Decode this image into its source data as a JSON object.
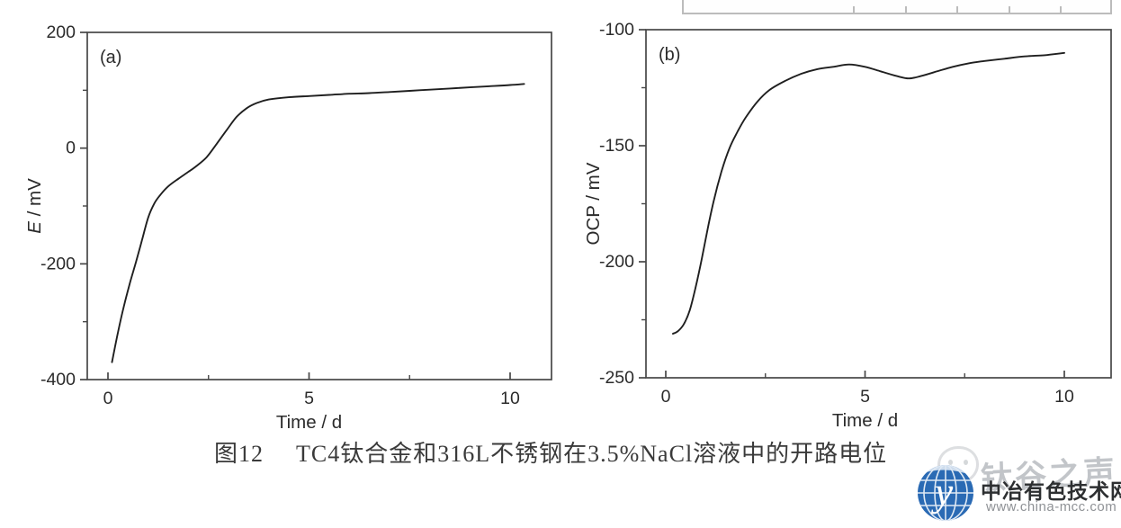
{
  "caption": {
    "figure_label": "图12",
    "text": "TC4钛合金和316L不锈钢在3.5%NaCl溶液中的开路电位"
  },
  "watermark": {
    "text": "钛谷之声"
  },
  "logo": {
    "site_name": "中冶有色技术网",
    "site_url": "www.china-mcc.com",
    "globe_letter": "y",
    "globe_color": "#2a6ab4"
  },
  "colors": {
    "axis": "#474747",
    "curve": "#1f1f1f",
    "tick_label": "#2b2b2b",
    "remnant_border": "#bcbcbc",
    "background": "#ffffff"
  },
  "chart_data": [
    {
      "type": "line",
      "panel_label": "(a)",
      "xlabel": "Time / d",
      "ylabel": "E / mV",
      "ylabel_parts": [
        {
          "text": "E",
          "italic": true
        },
        {
          "text": " / mV",
          "italic": false
        }
      ],
      "xlim": [
        0,
        10
      ],
      "ylim": [
        -400,
        200
      ],
      "xticks": [
        0,
        5,
        10
      ],
      "xticks_minor": [
        2.5,
        7.5
      ],
      "yticks": [
        200,
        0,
        -200,
        -400
      ],
      "yticks_minor": [
        100,
        -100,
        -300
      ],
      "grid": false,
      "legend": "none",
      "series": [
        {
          "name": "open-circuit potential",
          "points": [
            [
              0.1,
              -370
            ],
            [
              0.25,
              -318
            ],
            [
              0.4,
              -272
            ],
            [
              0.55,
              -232
            ],
            [
              0.7,
              -196
            ],
            [
              0.85,
              -158
            ],
            [
              1.0,
              -120
            ],
            [
              1.15,
              -96
            ],
            [
              1.3,
              -81
            ],
            [
              1.5,
              -66
            ],
            [
              1.75,
              -53
            ],
            [
              2.0,
              -41
            ],
            [
              2.2,
              -31
            ],
            [
              2.45,
              -16
            ],
            [
              2.7,
              7
            ],
            [
              2.95,
              31
            ],
            [
              3.2,
              54
            ],
            [
              3.45,
              69
            ],
            [
              3.7,
              78
            ],
            [
              4.0,
              84
            ],
            [
              4.5,
              88
            ],
            [
              5.0,
              90
            ],
            [
              5.5,
              92
            ],
            [
              6.0,
              94
            ],
            [
              6.5,
              95
            ],
            [
              7.0,
              97
            ],
            [
              7.5,
              99
            ],
            [
              8.0,
              101
            ],
            [
              8.5,
              103
            ],
            [
              9.0,
              105
            ],
            [
              9.5,
              107
            ],
            [
              10.0,
              109
            ],
            [
              10.35,
              111
            ]
          ]
        }
      ]
    },
    {
      "type": "line",
      "panel_label": "(b)",
      "xlabel": "Time / d",
      "ylabel": "OCP / mV",
      "ylabel_parts": [
        {
          "text": "OCP / mV",
          "italic": false
        }
      ],
      "xlim": [
        0,
        10
      ],
      "ylim": [
        -250,
        -100
      ],
      "xticks": [
        0,
        5,
        10
      ],
      "xticks_minor": [
        2.5,
        7.5
      ],
      "yticks": [
        -100,
        -150,
        -200,
        -250
      ],
      "yticks_minor": [
        -125,
        -175,
        -225
      ],
      "grid": false,
      "legend": "none",
      "series": [
        {
          "name": "open-circuit potential",
          "points": [
            [
              0.18,
              -231
            ],
            [
              0.3,
              -230
            ],
            [
              0.45,
              -227
            ],
            [
              0.6,
              -221
            ],
            [
              0.75,
              -211
            ],
            [
              0.9,
              -199
            ],
            [
              1.05,
              -186
            ],
            [
              1.2,
              -174
            ],
            [
              1.4,
              -161
            ],
            [
              1.6,
              -151
            ],
            [
              1.8,
              -144
            ],
            [
              2.0,
              -138
            ],
            [
              2.3,
              -131
            ],
            [
              2.6,
              -126
            ],
            [
              3.0,
              -122
            ],
            [
              3.4,
              -119
            ],
            [
              3.8,
              -117
            ],
            [
              4.2,
              -116
            ],
            [
              4.6,
              -115
            ],
            [
              5.0,
              -116
            ],
            [
              5.4,
              -118
            ],
            [
              5.8,
              -120
            ],
            [
              6.1,
              -121
            ],
            [
              6.4,
              -120
            ],
            [
              6.8,
              -118
            ],
            [
              7.2,
              -116
            ],
            [
              7.6,
              -114.5
            ],
            [
              8.0,
              -113.5
            ],
            [
              8.5,
              -112.5
            ],
            [
              9.0,
              -111.5
            ],
            [
              9.5,
              -111
            ],
            [
              10.0,
              -110
            ]
          ]
        }
      ]
    }
  ]
}
